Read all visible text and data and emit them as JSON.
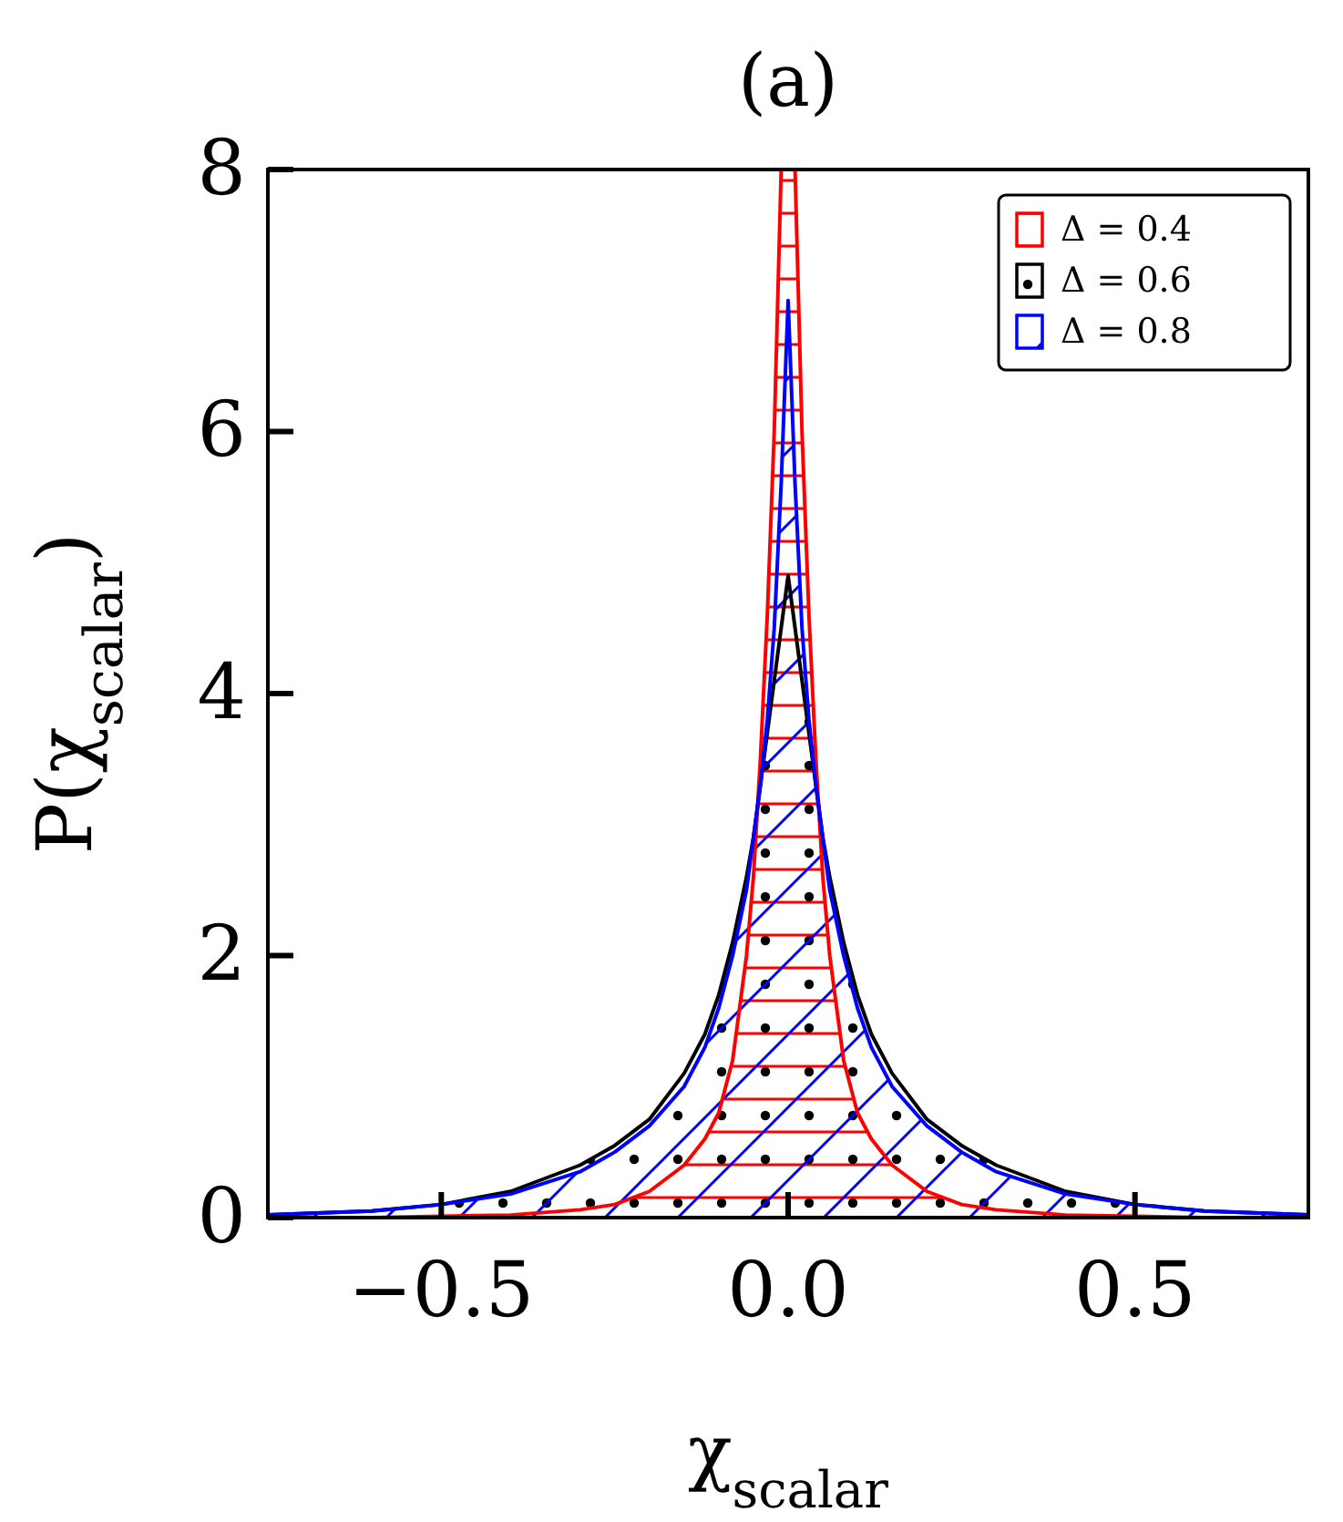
{
  "chart_data": {
    "type": "area",
    "title": "(a)",
    "xlabel": "χ$_{scalar}$",
    "ylabel": "P(χ$_{scalar}$)",
    "x": [
      -0.75,
      -0.6,
      -0.5,
      -0.4,
      -0.3,
      -0.25,
      -0.2,
      -0.15,
      -0.12,
      -0.1,
      -0.08,
      -0.06,
      -0.05,
      -0.04,
      -0.03,
      -0.02,
      -0.01,
      0,
      0.01,
      0.02,
      0.03,
      0.04,
      0.05,
      0.06,
      0.08,
      0.1,
      0.12,
      0.15,
      0.2,
      0.25,
      0.3,
      0.4,
      0.5,
      0.6,
      0.75
    ],
    "series": [
      {
        "name": "Δ = 0.4",
        "color": "#ff0000",
        "values": [
          0,
          0,
          0.01,
          0.02,
          0.06,
          0.1,
          0.2,
          0.4,
          0.6,
          0.8,
          1.2,
          2.0,
          2.6,
          3.5,
          4.6,
          6.0,
          8,
          8,
          8,
          6.0,
          4.6,
          3.5,
          2.6,
          2.0,
          1.2,
          0.8,
          0.6,
          0.4,
          0.2,
          0.1,
          0.06,
          0.02,
          0.01,
          0,
          0
        ]
      },
      {
        "name": "Δ = 0.6",
        "color": "#000000",
        "values": [
          0.02,
          0.05,
          0.1,
          0.2,
          0.4,
          0.55,
          0.75,
          1.1,
          1.4,
          1.7,
          2.1,
          2.6,
          2.9,
          3.3,
          3.7,
          4.1,
          4.5,
          4.9,
          4.5,
          4.1,
          3.7,
          3.3,
          2.9,
          2.6,
          2.1,
          1.7,
          1.4,
          1.1,
          0.75,
          0.55,
          0.4,
          0.2,
          0.1,
          0.05,
          0.02
        ]
      },
      {
        "name": "Δ = 0.8",
        "color": "#0000ff",
        "values": [
          0.02,
          0.05,
          0.1,
          0.18,
          0.35,
          0.5,
          0.7,
          1.0,
          1.3,
          1.6,
          2.0,
          2.5,
          2.9,
          3.3,
          3.8,
          4.5,
          5.6,
          7.0,
          5.6,
          4.5,
          3.8,
          3.3,
          2.9,
          2.5,
          2.0,
          1.6,
          1.3,
          1.0,
          0.7,
          0.5,
          0.35,
          0.18,
          0.1,
          0.05,
          0.02
        ]
      }
    ],
    "xlim": [
      -0.75,
      0.75
    ],
    "ylim": [
      0,
      8
    ],
    "xticks": [
      {
        "value": -0.5,
        "label": "−0.5"
      },
      {
        "value": 0,
        "label": "0.0"
      },
      {
        "value": 0.5,
        "label": "0.5"
      }
    ],
    "yticks": [
      0,
      2,
      4,
      6,
      8
    ],
    "grid": false,
    "legend": "top right"
  }
}
